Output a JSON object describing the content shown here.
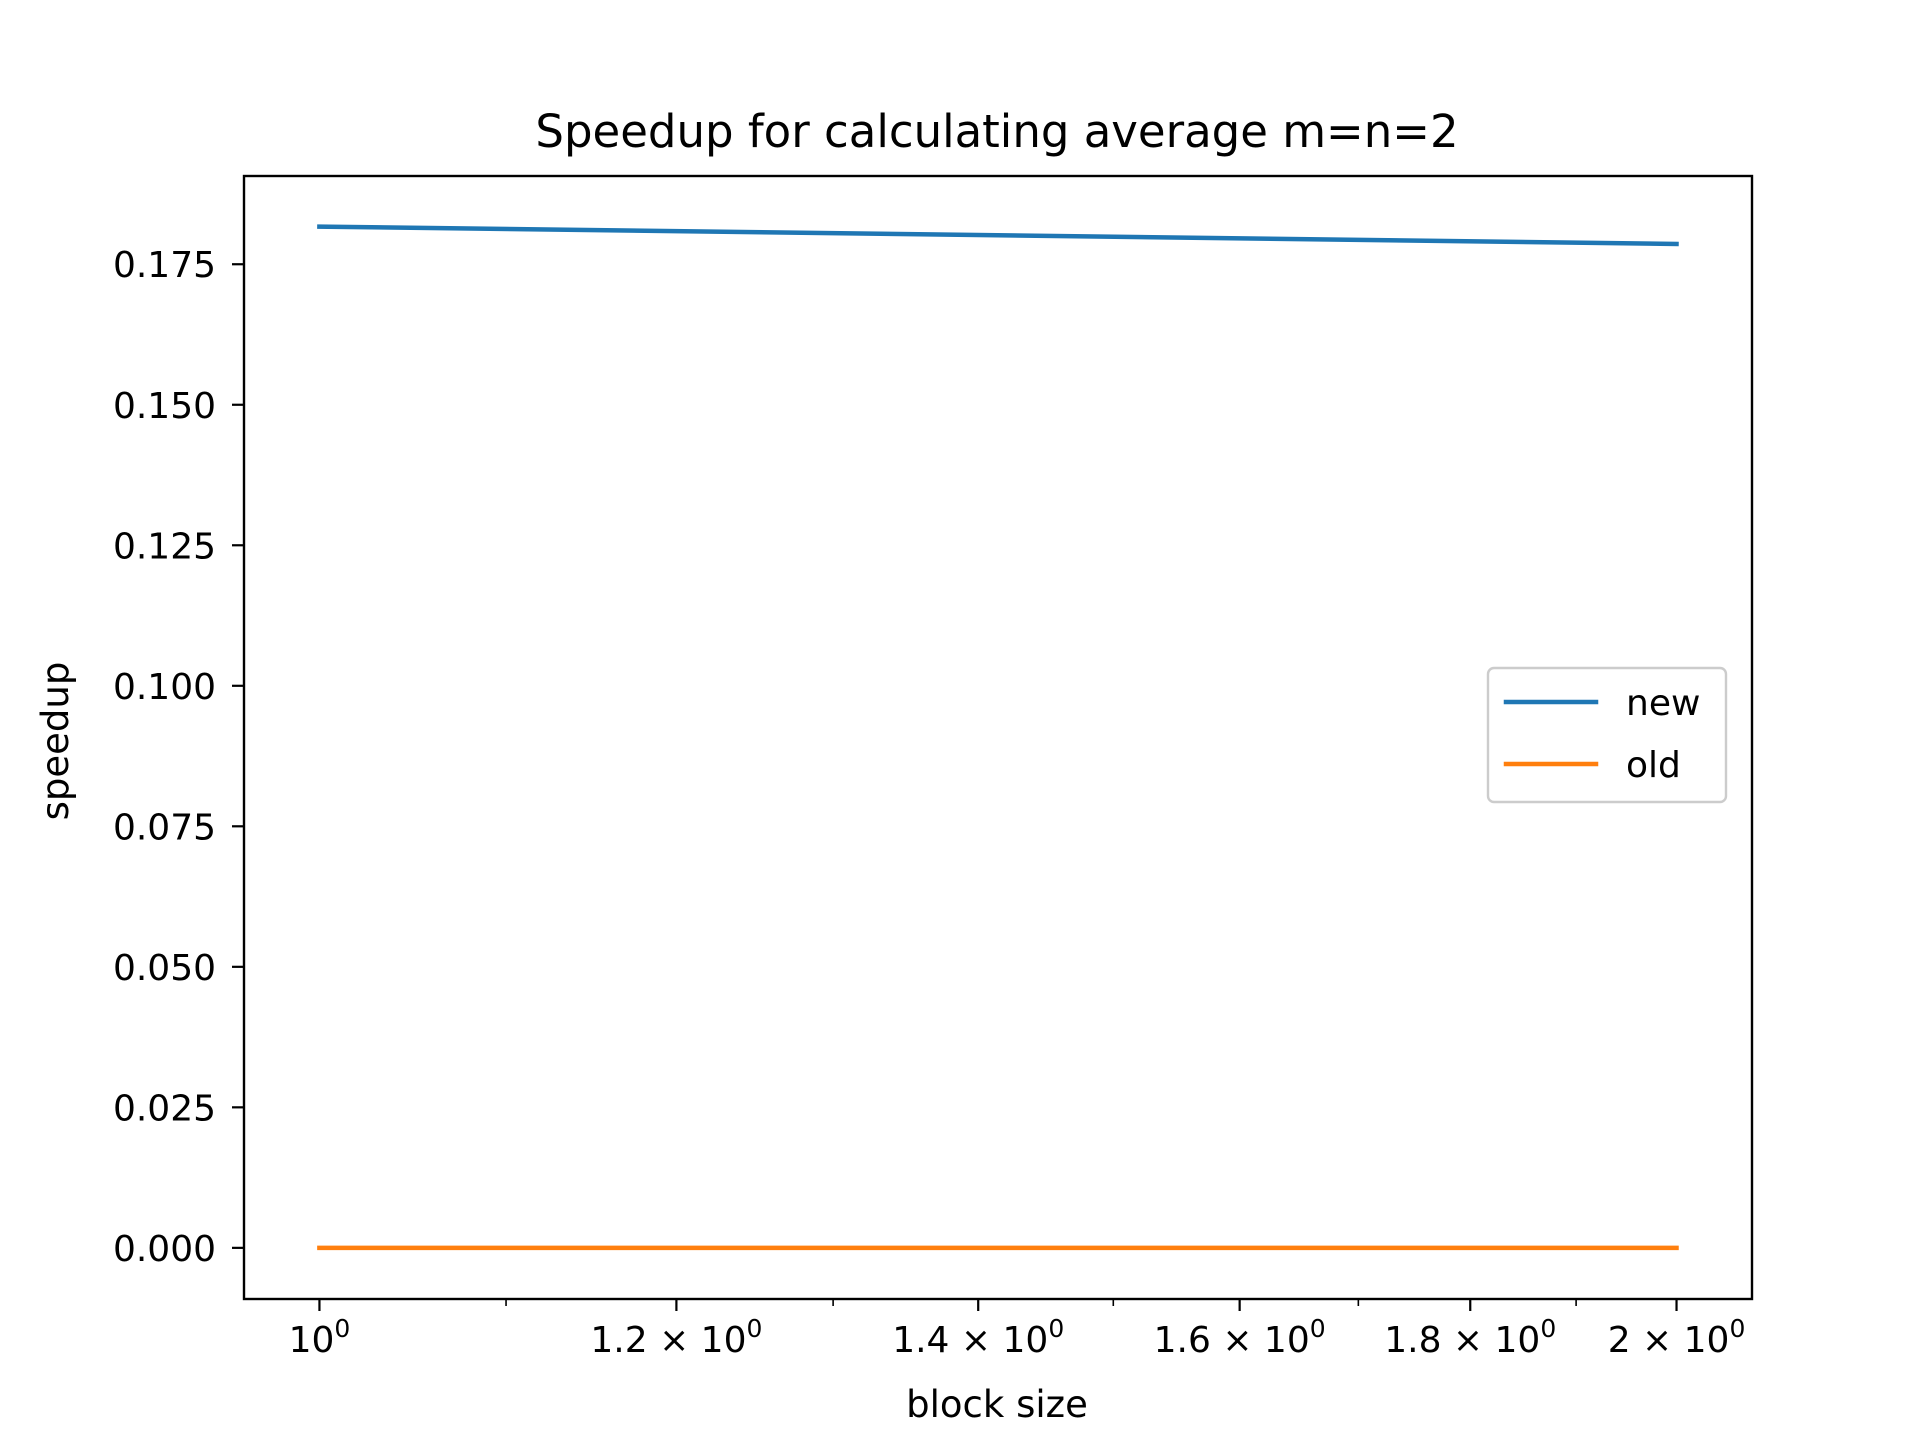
{
  "chart_data": {
    "type": "line",
    "title": "Speedup for calculating average m=n=2",
    "xlabel": "block size",
    "ylabel": "speedup",
    "xscale": "log",
    "x": [
      1.0,
      2.0
    ],
    "xlim": [
      0.9622,
      2.0786
    ],
    "ylim": [
      -0.0091,
      0.1907
    ],
    "x_ticks": [
      {
        "value": 1.0,
        "base": "10",
        "exp": "0"
      },
      {
        "value": 1.2,
        "base": "1.2 × 10",
        "exp": "0"
      },
      {
        "value": 1.4,
        "base": "1.4 × 10",
        "exp": "0"
      },
      {
        "value": 1.6,
        "base": "1.6 × 10",
        "exp": "0"
      },
      {
        "value": 1.8,
        "base": "1.8 × 10",
        "exp": "0"
      },
      {
        "value": 2.0,
        "base": "2 × 10",
        "exp": "0"
      }
    ],
    "y_ticks": [
      {
        "value": 0.0,
        "label": "0.000"
      },
      {
        "value": 0.025,
        "label": "0.025"
      },
      {
        "value": 0.05,
        "label": "0.050"
      },
      {
        "value": 0.075,
        "label": "0.075"
      },
      {
        "value": 0.1,
        "label": "0.100"
      },
      {
        "value": 0.125,
        "label": "0.125"
      },
      {
        "value": 0.15,
        "label": "0.150"
      },
      {
        "value": 0.175,
        "label": "0.175"
      }
    ],
    "series": [
      {
        "name": "new",
        "color": "#1f77b4",
        "values": [
          0.1817,
          0.1786
        ]
      },
      {
        "name": "old",
        "color": "#ff7f0e",
        "values": [
          0.0,
          0.0
        ]
      }
    ],
    "grid": false,
    "legend": "center-right"
  }
}
